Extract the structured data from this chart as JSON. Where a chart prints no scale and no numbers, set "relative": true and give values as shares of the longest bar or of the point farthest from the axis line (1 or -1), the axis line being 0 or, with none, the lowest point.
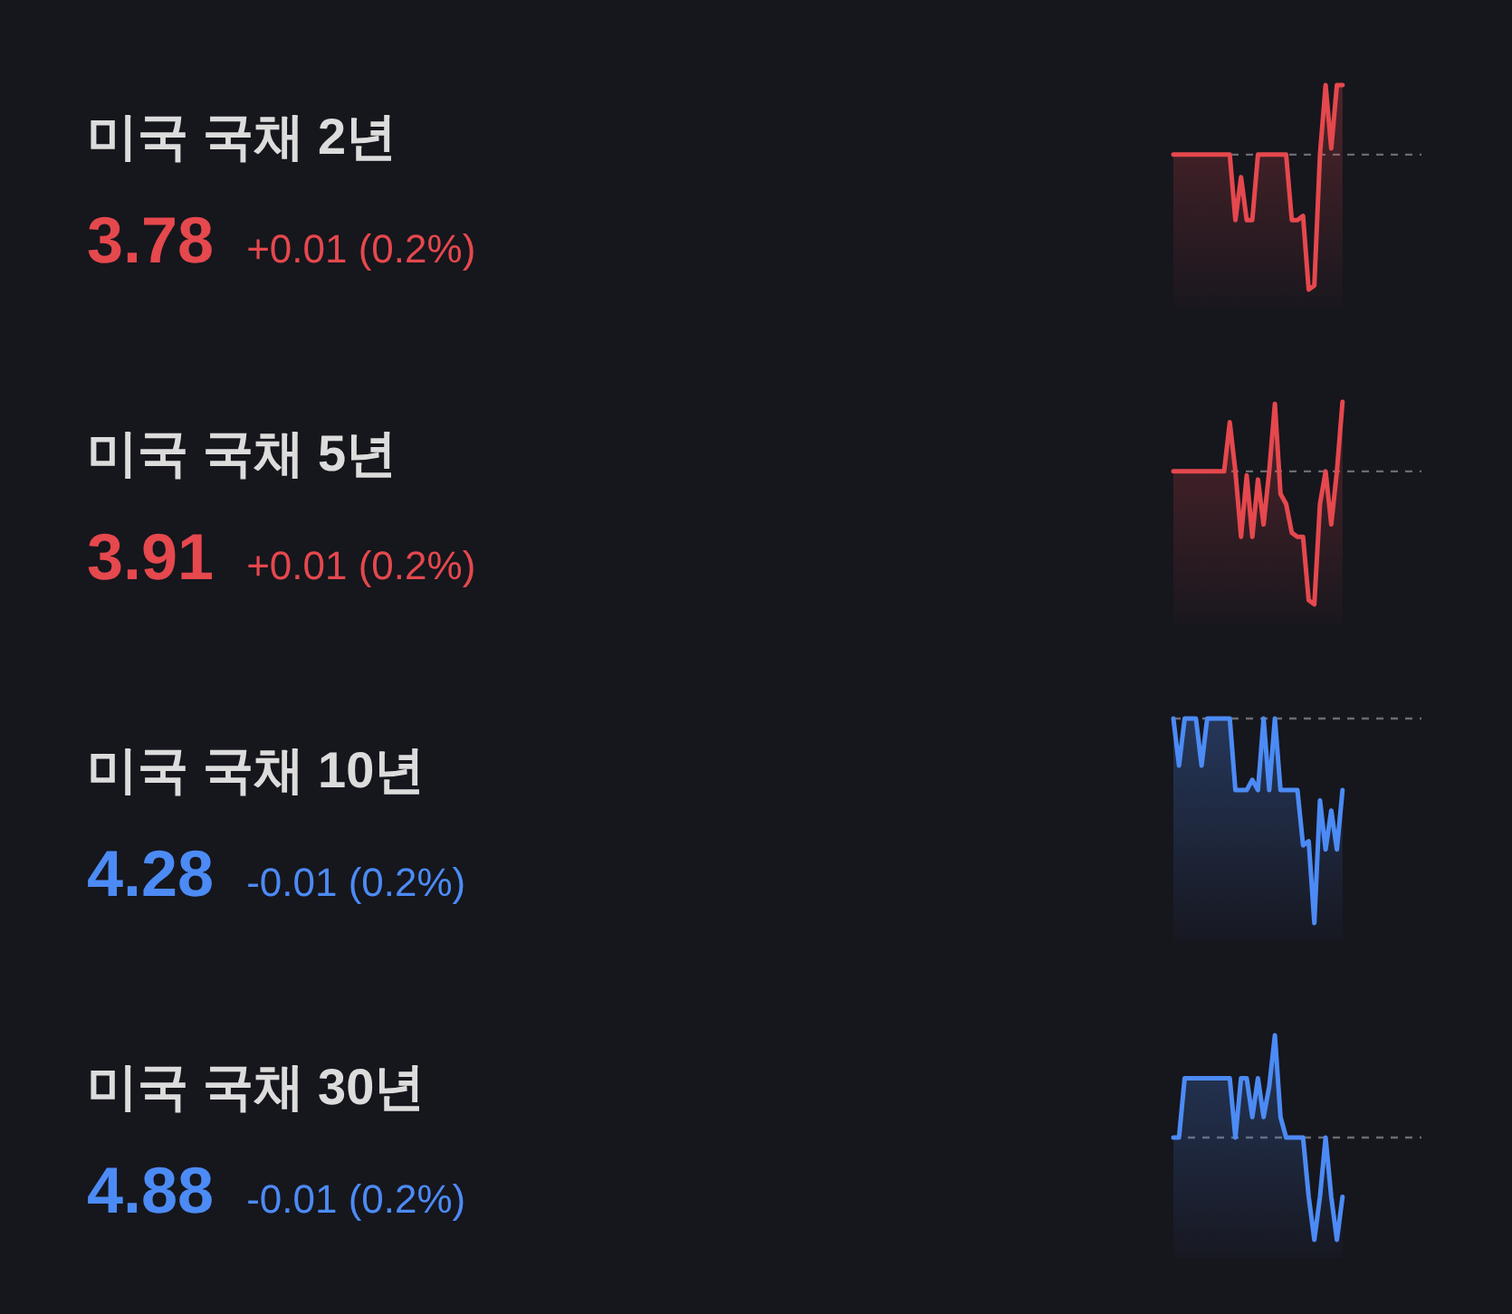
{
  "chart_data": [
    {
      "type": "other",
      "title": "미국 국채 2년",
      "annotations": [
        "3.78",
        "+0.01 (0.2%)"
      ]
    },
    {
      "type": "area",
      "relative": true,
      "categories": [
        null,
        null,
        null,
        null,
        null,
        null,
        null,
        null,
        null,
        null,
        null,
        null,
        null,
        null,
        null,
        null,
        null,
        null,
        null,
        null,
        null,
        null,
        null,
        null,
        null,
        null,
        null,
        null,
        null,
        null,
        null,
        null,
        null,
        null,
        null,
        null,
        null,
        null,
        null,
        null,
        null,
        null,
        null,
        null,
        null
      ],
      "series": [
        {
          "color": "#e5484d",
          "values": [
            0.66,
            0.66,
            0.66,
            0.66,
            0.66,
            0.66,
            0.66,
            0.66,
            0.66,
            0.66,
            0.66,
            0.34,
            0.55,
            0.34,
            0.34,
            0.66,
            0.66,
            0.66,
            0.66,
            0.66,
            0.66,
            0.34,
            0.34,
            0.36,
            0.0,
            0.02,
            0.66,
            1.0,
            0.69,
            1.0,
            1.0,
            null,
            null,
            null,
            null,
            null,
            null,
            null,
            null,
            null,
            null,
            null,
            null,
            null,
            null
          ]
        }
      ],
      "ref_lines": [
        {
          "axis": "y",
          "value": 0.66,
          "color": "#6b6b70",
          "line_style": "dashed"
        }
      ]
    },
    {
      "type": "other",
      "title": "미국 국채 5년",
      "annotations": [
        "3.91",
        "+0.01 (0.2%)"
      ]
    },
    {
      "type": "area",
      "relative": true,
      "categories": [
        null,
        null,
        null,
        null,
        null,
        null,
        null,
        null,
        null,
        null,
        null,
        null,
        null,
        null,
        null,
        null,
        null,
        null,
        null,
        null,
        null,
        null,
        null,
        null,
        null,
        null,
        null,
        null,
        null,
        null,
        null,
        null,
        null,
        null,
        null,
        null,
        null,
        null,
        null,
        null,
        null,
        null,
        null,
        null,
        null
      ],
      "series": [
        {
          "color": "#e5484d",
          "values": [
            0.66,
            0.66,
            0.66,
            0.66,
            0.66,
            0.66,
            0.66,
            0.66,
            0.66,
            0.66,
            0.9,
            0.66,
            0.34,
            0.64,
            0.34,
            0.62,
            0.4,
            0.66,
            0.99,
            0.55,
            0.5,
            0.36,
            0.34,
            0.34,
            0.03,
            0.01,
            0.5,
            0.66,
            0.4,
            0.66,
            1.0,
            null,
            null,
            null,
            null,
            null,
            null,
            null,
            null,
            null,
            null,
            null,
            null,
            null,
            null
          ]
        }
      ],
      "ref_lines": [
        {
          "axis": "y",
          "value": 0.66,
          "color": "#6b6b70",
          "line_style": "dashed"
        }
      ]
    },
    {
      "type": "other",
      "title": "미국 국채 10년",
      "annotations": [
        "4.28",
        "-0.01 (0.2%)"
      ]
    },
    {
      "type": "area",
      "relative": true,
      "categories": [
        null,
        null,
        null,
        null,
        null,
        null,
        null,
        null,
        null,
        null,
        null,
        null,
        null,
        null,
        null,
        null,
        null,
        null,
        null,
        null,
        null,
        null,
        null,
        null,
        null,
        null,
        null,
        null,
        null,
        null,
        null,
        null,
        null,
        null,
        null,
        null,
        null,
        null,
        null,
        null,
        null,
        null,
        null,
        null,
        null
      ],
      "series": [
        {
          "color": "#4c8bf5",
          "values": [
            1.0,
            0.77,
            1.0,
            1.0,
            1.0,
            0.77,
            1.0,
            1.0,
            1.0,
            1.0,
            1.0,
            0.65,
            0.65,
            0.65,
            0.7,
            0.65,
            1.0,
            0.65,
            1.0,
            0.65,
            0.65,
            0.65,
            0.65,
            0.38,
            0.4,
            0.0,
            0.6,
            0.36,
            0.55,
            0.36,
            0.65,
            null,
            null,
            null,
            null,
            null,
            null,
            null,
            null,
            null,
            null,
            null,
            null,
            null,
            null
          ]
        }
      ],
      "ref_lines": [
        {
          "axis": "y",
          "value": 1.0,
          "color": "#6b6b70",
          "line_style": "dashed"
        }
      ]
    },
    {
      "type": "other",
      "title": "미국 국채 30년",
      "annotations": [
        "4.88",
        "-0.01 (0.2%)"
      ]
    },
    {
      "type": "area",
      "relative": true,
      "categories": [
        null,
        null,
        null,
        null,
        null,
        null,
        null,
        null,
        null,
        null,
        null,
        null,
        null,
        null,
        null,
        null,
        null,
        null,
        null,
        null,
        null,
        null,
        null,
        null,
        null,
        null,
        null,
        null,
        null,
        null,
        null,
        null,
        null,
        null,
        null,
        null,
        null,
        null,
        null,
        null,
        null,
        null,
        null,
        null,
        null
      ],
      "series": [
        {
          "color": "#4c8bf5",
          "values": [
            0.5,
            0.5,
            0.79,
            0.79,
            0.79,
            0.79,
            0.79,
            0.79,
            0.79,
            0.79,
            0.79,
            0.5,
            0.79,
            0.79,
            0.6,
            0.79,
            0.6,
            0.75,
            1.0,
            0.6,
            0.5,
            0.5,
            0.5,
            0.5,
            0.21,
            0.0,
            0.21,
            0.5,
            0.21,
            0.0,
            0.21,
            null,
            null,
            null,
            null,
            null,
            null,
            null,
            null,
            null,
            null,
            null,
            null,
            null,
            null
          ]
        }
      ],
      "ref_lines": [
        {
          "axis": "y",
          "value": 0.5,
          "color": "#6b6b70",
          "line_style": "dashed"
        }
      ]
    }
  ]
}
